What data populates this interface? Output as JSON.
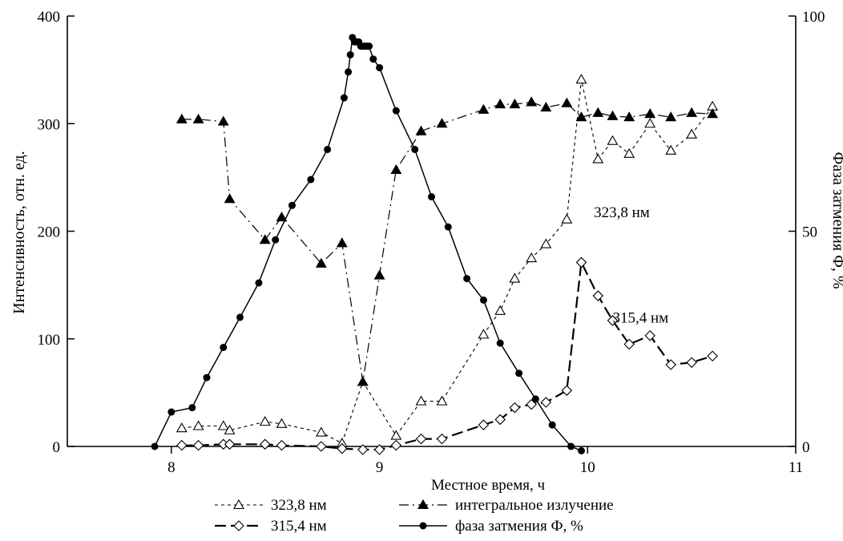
{
  "chart_data": {
    "type": "line",
    "xlabel": "Местное время, ч",
    "ylabel_left": "Интенсивность, отн. ед.",
    "ylabel_right": "Фаза затмения Ф, %",
    "xlim": [
      7.5,
      11.0
    ],
    "ylim_left": [
      0,
      400
    ],
    "ylim_right": [
      0,
      100
    ],
    "x_ticks": [
      8,
      9,
      10,
      11
    ],
    "y_ticks_left": [
      0,
      100,
      200,
      300,
      400
    ],
    "y_ticks_right": [
      0,
      50,
      100
    ],
    "grid": false,
    "legend_position": "bottom",
    "annotations": [
      {
        "text": "323,8 нм",
        "x": 10.03,
        "y": 213
      },
      {
        "text": "315,4 нм",
        "x": 10.12,
        "y": 115
      }
    ],
    "series": [
      {
        "name": "323,8 нм",
        "axis": "left",
        "marker": "open-triangle",
        "line": "short-dash",
        "x": [
          8.05,
          8.13,
          8.25,
          8.28,
          8.45,
          8.53,
          8.72,
          8.82,
          8.92,
          9.08,
          9.2,
          9.3,
          9.5,
          9.58,
          9.65,
          9.73,
          9.8,
          9.9,
          9.97,
          10.05,
          10.12,
          10.2,
          10.3,
          10.4,
          10.5,
          10.6
        ],
        "y": [
          17,
          19,
          19,
          15,
          23,
          21,
          13,
          3,
          60,
          10,
          42,
          42,
          104,
          126,
          156,
          175,
          188,
          211,
          341,
          267,
          284,
          272,
          300,
          275,
          290,
          316
        ]
      },
      {
        "name": "315,4 нм",
        "axis": "left",
        "marker": "open-diamond",
        "line": "long-dash",
        "x": [
          8.05,
          8.13,
          8.25,
          8.28,
          8.45,
          8.53,
          8.72,
          8.82,
          8.92,
          9.0,
          9.08,
          9.2,
          9.3,
          9.5,
          9.58,
          9.65,
          9.73,
          9.8,
          9.9,
          9.97,
          10.05,
          10.12,
          10.2,
          10.3,
          10.4,
          10.5,
          10.6
        ],
        "y": [
          1,
          1,
          2,
          2,
          2,
          1,
          0,
          -2,
          -3,
          -3,
          1,
          7,
          7,
          20,
          25,
          36,
          39,
          41,
          52,
          171,
          140,
          117,
          95,
          103,
          76,
          78,
          84
        ]
      },
      {
        "name": "интегральное излучение",
        "axis": "left",
        "marker": "filled-triangle",
        "line": "dash-dot",
        "x": [
          8.05,
          8.13,
          8.25,
          8.28,
          8.45,
          8.53,
          8.72,
          8.82,
          8.92,
          9.0,
          9.08,
          9.2,
          9.3,
          9.5,
          9.58,
          9.65,
          9.73,
          9.8,
          9.9,
          9.97,
          10.05,
          10.12,
          10.2,
          10.3,
          10.4,
          10.5,
          10.6
        ],
        "y": [
          304,
          304,
          302,
          230,
          192,
          213,
          170,
          189,
          60,
          159,
          257,
          293,
          300,
          313,
          318,
          318,
          320,
          315,
          319,
          306,
          310,
          307,
          306,
          309,
          306,
          310,
          309
        ]
      },
      {
        "name": "фаза затмения Ф, %",
        "axis": "right",
        "marker": "filled-circle",
        "line": "solid",
        "x": [
          7.92,
          8.0,
          8.1,
          8.17,
          8.25,
          8.33,
          8.42,
          8.5,
          8.58,
          8.67,
          8.75,
          8.83,
          8.85,
          8.86,
          8.87,
          8.88,
          8.89,
          8.9,
          8.91,
          8.92,
          8.93,
          8.94,
          8.95,
          8.97,
          9.0,
          9.08,
          9.17,
          9.25,
          9.33,
          9.42,
          9.5,
          9.58,
          9.67,
          9.75,
          9.83,
          9.92,
          9.97
        ],
        "y": [
          0,
          8,
          9,
          16,
          23,
          30,
          38,
          48,
          56,
          62,
          69,
          81,
          87,
          91,
          95,
          94,
          94,
          94,
          93,
          93,
          93,
          93,
          93,
          90,
          88,
          78,
          69,
          58,
          51,
          39,
          34,
          24,
          17,
          11,
          5,
          0,
          -1
        ]
      }
    ]
  }
}
